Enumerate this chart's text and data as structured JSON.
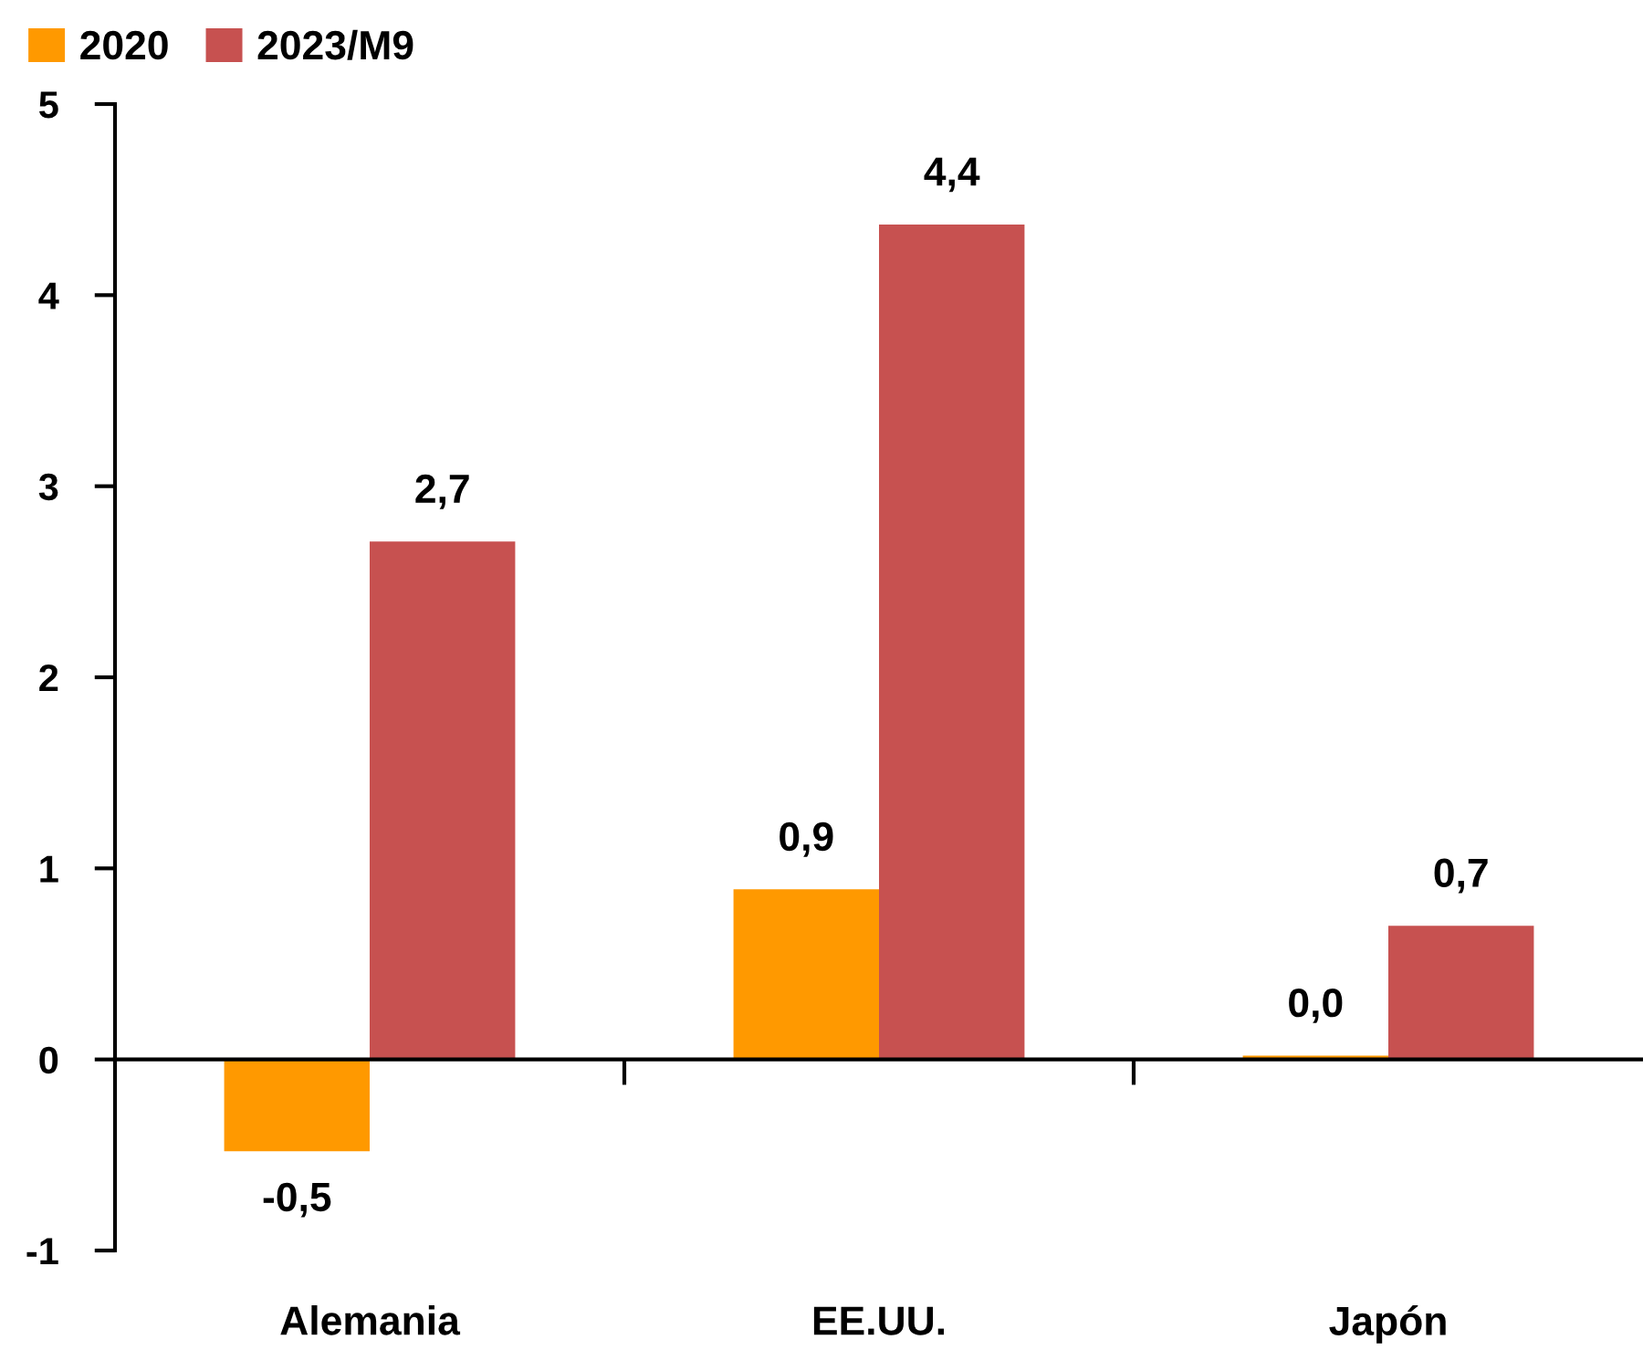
{
  "chart_data": {
    "type": "bar",
    "categories": [
      "Alemania",
      "EE.UU.",
      "Japón"
    ],
    "series": [
      {
        "name": "2020",
        "color": "#ff9900",
        "values": [
          -0.48,
          0.89,
          0.02
        ],
        "value_labels": [
          "-0,5",
          "0,9",
          "0,0"
        ]
      },
      {
        "name": "2023/M9",
        "color": "#c75150",
        "values": [
          2.71,
          4.37,
          0.7
        ],
        "value_labels": [
          "2,7",
          "4,4",
          "0,7"
        ]
      }
    ],
    "ylim": [
      -1,
      5
    ],
    "yticks": [
      -1,
      0,
      1,
      2,
      3,
      4,
      5
    ],
    "legend": "top left"
  }
}
